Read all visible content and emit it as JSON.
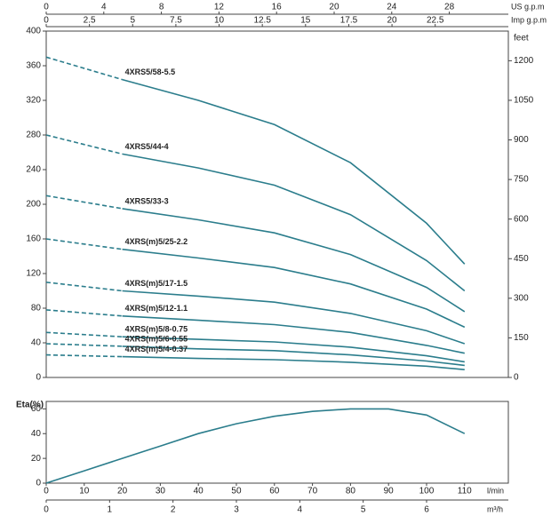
{
  "chart_data": [
    {
      "type": "line",
      "x": [
        0,
        20,
        40,
        60,
        80,
        100,
        110
      ],
      "xlim": [
        0,
        121.5
      ],
      "ylim": [
        0,
        400
      ],
      "yticks": [
        0,
        40,
        80,
        120,
        160,
        200,
        240,
        280,
        320,
        360,
        400
      ],
      "y2label": "feet",
      "y2lim": [
        0,
        1312.3
      ],
      "y2ticks": [
        0,
        150,
        300,
        450,
        600,
        750,
        900,
        1050,
        1200
      ],
      "top_axes": [
        {
          "label": "US g.p.m",
          "lim": [
            0,
            32.1
          ],
          "ticks": [
            0,
            4,
            8,
            12,
            16,
            20,
            24,
            28
          ]
        },
        {
          "label": "Imp g.p.m",
          "lim": [
            0,
            26.73
          ],
          "ticks": [
            0,
            2.5,
            5,
            7.5,
            10,
            12.5,
            15,
            17.5,
            20,
            22.5
          ]
        }
      ],
      "series": [
        {
          "name": "4XRS5/58-5.5",
          "color": "#2b7d8c",
          "values": [
            370,
            344,
            320,
            292,
            248,
            178,
            131
          ]
        },
        {
          "name": "4XRS5/44-4",
          "color": "#2b7d8c",
          "values": [
            280,
            258,
            242,
            222,
            188,
            135,
            100
          ]
        },
        {
          "name": "4XRS5/33-3",
          "color": "#2b7d8c",
          "values": [
            210,
            195,
            182,
            167,
            142,
            104,
            76
          ]
        },
        {
          "name": "4XRS(m)5/25-2.2",
          "color": "#2b7d8c",
          "values": [
            160,
            148,
            138,
            127,
            108,
            79,
            58
          ]
        },
        {
          "name": "4XRS(m)5/17-1.5",
          "color": "#2b7d8c",
          "values": [
            110,
            100,
            94,
            87,
            74,
            54,
            39
          ]
        },
        {
          "name": "4XRS(m)5/12-1.1",
          "color": "#2b7d8c",
          "values": [
            78,
            71,
            66,
            61,
            52,
            37,
            28
          ]
        },
        {
          "name": "4XRS(m)5/8-0.75",
          "color": "#2b7d8c",
          "values": [
            52,
            47,
            44,
            41,
            35,
            25,
            18
          ]
        },
        {
          "name": "4XRS(m)5/6-0.55",
          "color": "#2b7d8c",
          "values": [
            39,
            36,
            33,
            31,
            26,
            19,
            14
          ]
        },
        {
          "name": "4XRS(m)5/4-0.37",
          "color": "#2b7d8c",
          "values": [
            26,
            24,
            22,
            20.5,
            17.5,
            13,
            9
          ]
        }
      ]
    },
    {
      "type": "line",
      "ylabel": "Eta(%)",
      "x": [
        0,
        10,
        20,
        30,
        40,
        50,
        60,
        70,
        80,
        90,
        100,
        110
      ],
      "xlim": [
        0,
        121.5
      ],
      "xticks": [
        0,
        10,
        20,
        30,
        40,
        50,
        60,
        70,
        80,
        90,
        100,
        110
      ],
      "xlabel": "l/min",
      "ylim": [
        0,
        66
      ],
      "yticks": [
        0,
        20,
        40,
        60
      ],
      "bottom_axis": {
        "label": "m³/h",
        "lim": [
          0,
          7.29
        ],
        "ticks": [
          0,
          1,
          2,
          3,
          4,
          5,
          6
        ]
      },
      "series": [
        {
          "color": "#2b7d8c",
          "values": [
            0,
            10,
            20,
            30,
            40,
            48,
            54,
            58,
            60,
            60,
            55,
            40
          ]
        }
      ]
    }
  ]
}
